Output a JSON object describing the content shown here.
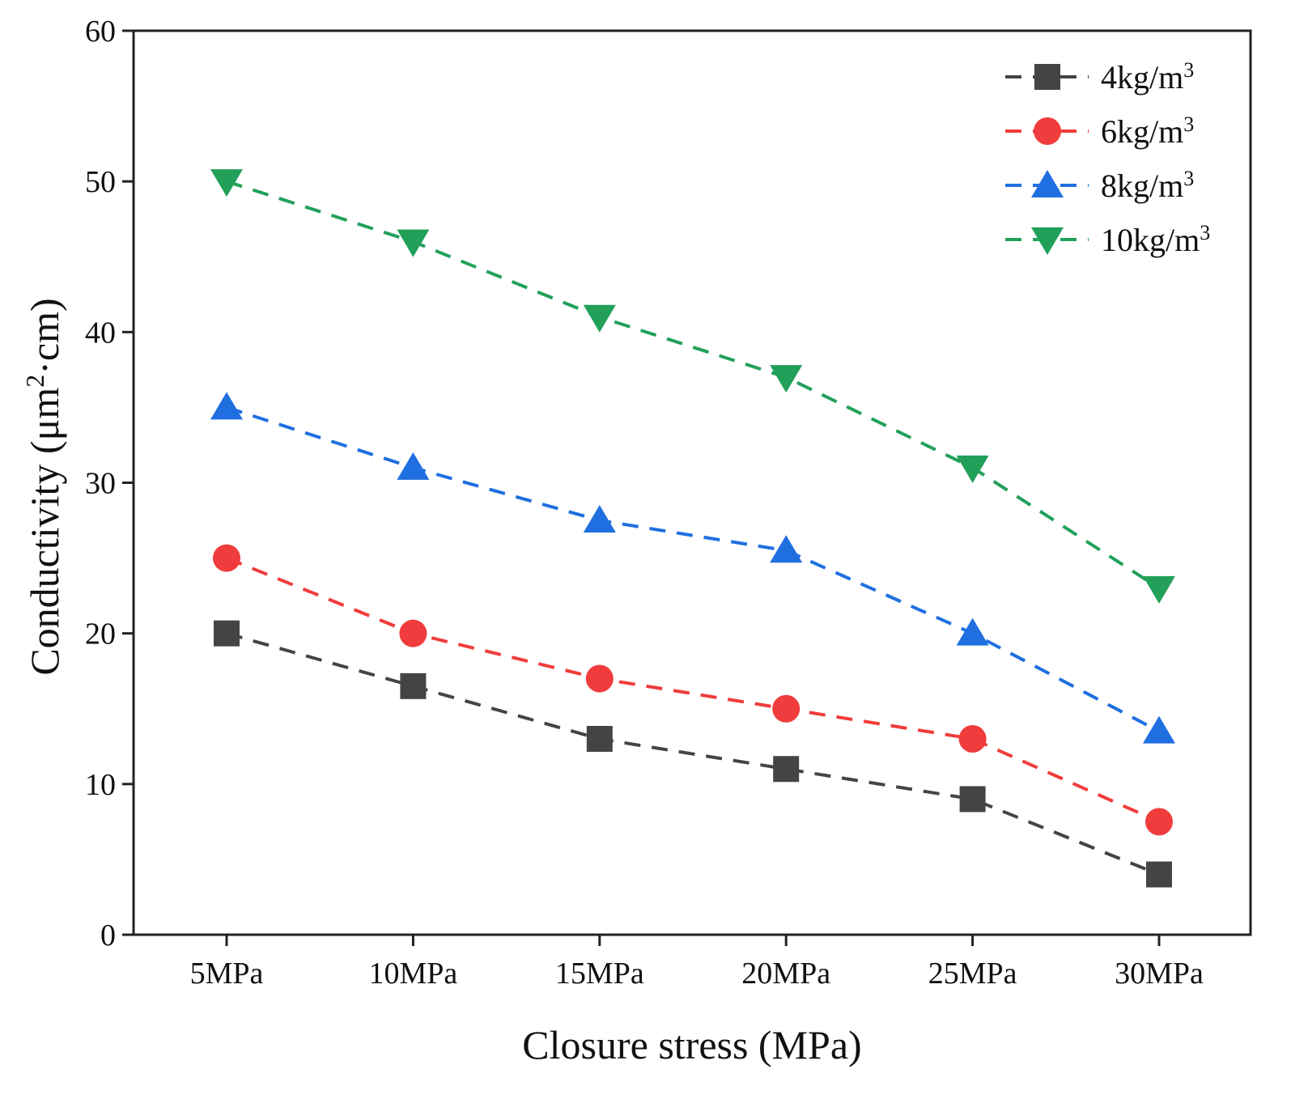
{
  "chart_data": {
    "type": "line",
    "title": "",
    "xlabel": "Closure stress (MPa)",
    "ylabel": {
      "prefix": "Conductivity (μm",
      "sup": "2",
      "suffix": "·cm)"
    },
    "categories": [
      "5MPa",
      "10MPa",
      "15MPa",
      "20MPa",
      "25MPa",
      "30MPa"
    ],
    "ylim": [
      0,
      60
    ],
    "yticks": [
      0,
      10,
      20,
      30,
      40,
      50,
      60
    ],
    "grid": false,
    "legend_position": "top-right",
    "series": [
      {
        "name": "4kg/m",
        "name_sup": "3",
        "color": "#444444",
        "marker": "square",
        "values": [
          20,
          16.5,
          13,
          11,
          9,
          4
        ]
      },
      {
        "name": "6kg/m",
        "name_sup": "3",
        "color": "#f03c3c",
        "marker": "circle",
        "values": [
          25,
          20,
          17,
          15,
          13,
          7.5
        ]
      },
      {
        "name": "8kg/m",
        "name_sup": "3",
        "color": "#1f6fe0",
        "marker": "triangle-up",
        "values": [
          35,
          31,
          27.5,
          25.5,
          20,
          13.5
        ]
      },
      {
        "name": "10kg/m",
        "name_sup": "3",
        "color": "#22a05a",
        "marker": "triangle-down",
        "values": [
          50,
          46,
          41,
          37,
          31,
          23
        ]
      }
    ]
  }
}
